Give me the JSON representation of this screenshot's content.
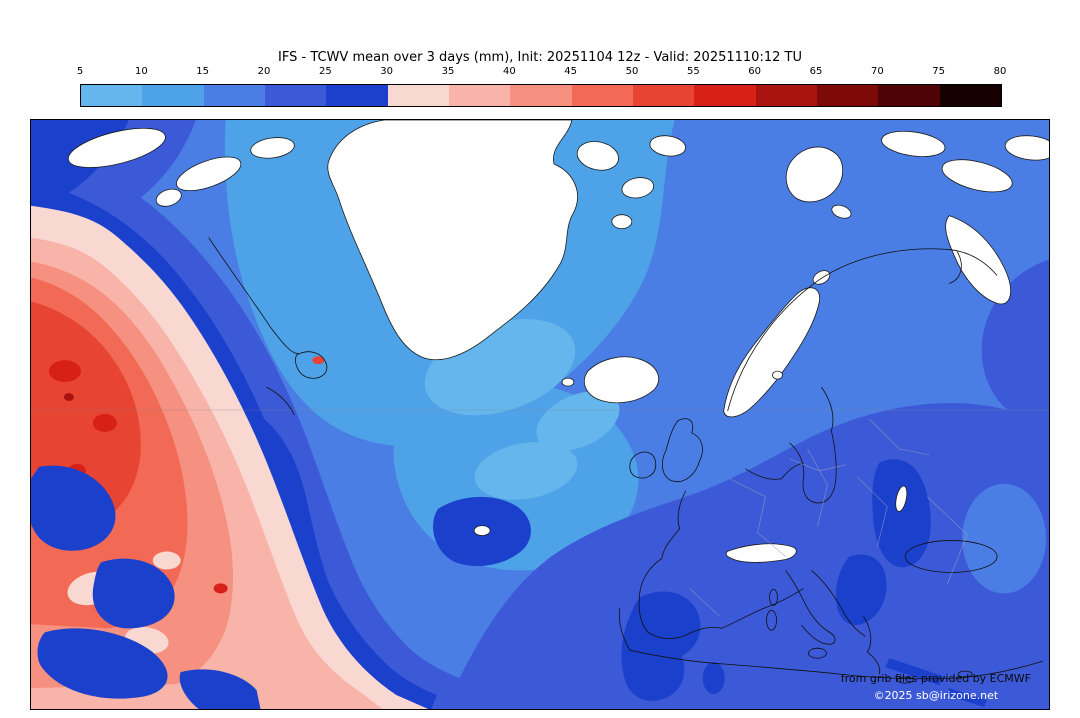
{
  "title": "IFS - TCWV mean over 3 days (mm), Init: 20251104 12z - Valid: 20251110:12 TU",
  "colorbar": {
    "unit": "mm",
    "ticks": [
      "5",
      "10",
      "15",
      "20",
      "25",
      "30",
      "35",
      "40",
      "45",
      "50",
      "55",
      "60",
      "65",
      "70",
      "75",
      "80"
    ],
    "colors": [
      "#64b6ec",
      "#4ea2e8",
      "#4a7ee4",
      "#3c5ad8",
      "#1a40cc",
      "#fad8d2",
      "#f8b4a8",
      "#f69080",
      "#f26a56",
      "#e84434",
      "#d62018",
      "#aa1410",
      "#7e0a08",
      "#4e0404",
      "#160000"
    ]
  },
  "map": {
    "credit_line1": "from grib files provided by ECMWF",
    "credit_line2": "©2025 sb@irizone.net"
  },
  "chart_data": {
    "type": "heatmap",
    "title": "IFS - TCWV mean over 3 days (mm)",
    "model": "IFS",
    "variable": "TCWV mean over 3 days",
    "units": "mm",
    "init": "20251104 12z",
    "valid": "20251110:12 TU",
    "region_depicted": "North Atlantic, Greenland and Europe",
    "colorbar_ticks": [
      5,
      10,
      15,
      20,
      25,
      30,
      35,
      40,
      45,
      50,
      55,
      60,
      65,
      70,
      75,
      80
    ],
    "colorbar_colors": [
      "#64b6ec",
      "#4ea2e8",
      "#4a7ee4",
      "#3c5ad8",
      "#1a40cc",
      "#fad8d2",
      "#f8b4a8",
      "#f69080",
      "#f26a56",
      "#e84434",
      "#d62018",
      "#aa1410",
      "#7e0a08",
      "#4e0404",
      "#160000"
    ],
    "legend_position": "top",
    "value_interpretation": {
      "white_areas": "below 5 mm (Greenland, Arctic islands, Iceland, Scandinavian mountains, Alps)",
      "blue_areas": "5-30 mm (Arctic and European sector)",
      "red_areas": "30-60 mm (subtropical western Atlantic moisture plume)"
    }
  }
}
